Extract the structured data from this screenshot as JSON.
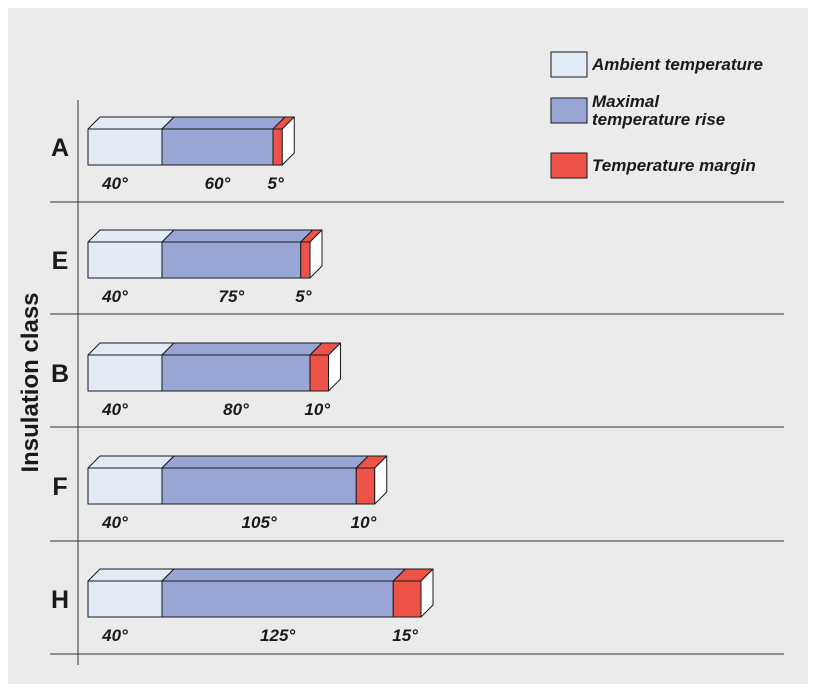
{
  "chart_data": {
    "type": "bar",
    "orientation": "horizontal",
    "stacked": true,
    "ylabel": "Insulation class",
    "categories": [
      "A",
      "E",
      "B",
      "F",
      "H"
    ],
    "series": [
      {
        "name": "Ambient temperature",
        "color": "#e2eaf6",
        "values": [
          40,
          40,
          40,
          40,
          40
        ],
        "labels": [
          "40°",
          "40°",
          "40°",
          "40°",
          "40°"
        ]
      },
      {
        "name": "Maximal temperature rise",
        "color": "#98a5d5",
        "values": [
          60,
          75,
          80,
          105,
          125
        ],
        "labels": [
          "60°",
          "75°",
          "80°",
          "105°",
          "125°"
        ]
      },
      {
        "name": "Temperature margin",
        "color": "#ed5349",
        "values": [
          5,
          5,
          10,
          10,
          15
        ],
        "labels": [
          "5°",
          "5°",
          "10°",
          "10°",
          "15°"
        ]
      }
    ],
    "legend": {
      "placement": "top-right",
      "items": [
        {
          "lines": [
            "Ambient temperature"
          ],
          "color": "#e2eaf6"
        },
        {
          "lines": [
            "Maximal",
            "temperature rise"
          ],
          "color": "#98a5d5"
        },
        {
          "lines": [
            "Temperature margin"
          ],
          "color": "#ed5349"
        }
      ]
    },
    "colors": {
      "background": "#ebebec",
      "outline": "#1a1a1a",
      "grid": "#333333",
      "end_cap": "#ffffff"
    }
  }
}
